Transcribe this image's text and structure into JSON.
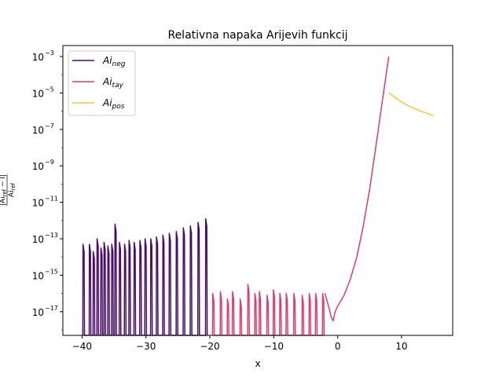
{
  "chart_data": {
    "type": "line",
    "title": "Relativna napaka Arijevih funkcij",
    "xlabel": "x",
    "ylabel": "|Ai_ref − I| / Ai_ref",
    "xlim": [
      -43,
      18
    ],
    "yscale": "log",
    "ylim_log10": [
      -18.3,
      -2.4
    ],
    "x_ticks": [
      -40,
      -30,
      -20,
      -10,
      0,
      10
    ],
    "x_tick_labels": [
      "−40",
      "−30",
      "−20",
      "−10",
      "0",
      "10"
    ],
    "y_ticks_log10": [
      -17,
      -15,
      -13,
      -11,
      -9,
      -7,
      -5,
      -3
    ],
    "y_tick_labels": [
      "10",
      "10",
      "10",
      "10",
      "10",
      "10",
      "10",
      "10"
    ],
    "y_tick_exponents": [
      "−17",
      "−15",
      "−13",
      "−11",
      "−9",
      "−7",
      "−5",
      "−3"
    ],
    "grid": false,
    "legend_position": "upper-left",
    "series": [
      {
        "name_base": "Ai",
        "name_sub": "neg",
        "color": "#4a0c6b",
        "style": "spikes",
        "x_range": [
          -40,
          -20.5
        ],
        "peaks": [
          {
            "x": -39.8,
            "log10_y": -13.3
          },
          {
            "x": -38.8,
            "log10_y": -13.3
          },
          {
            "x": -38.2,
            "log10_y": -13.7
          },
          {
            "x": -37.6,
            "log10_y": -13.0
          },
          {
            "x": -37.0,
            "log10_y": -13.5
          },
          {
            "x": -36.5,
            "log10_y": -13.2
          },
          {
            "x": -35.9,
            "log10_y": -13.4
          },
          {
            "x": -35.3,
            "log10_y": -13.3
          },
          {
            "x": -34.8,
            "log10_y": -12.2
          },
          {
            "x": -34.1,
            "log10_y": -13.2
          },
          {
            "x": -33.3,
            "log10_y": -13.3
          },
          {
            "x": -32.6,
            "log10_y": -13.1
          },
          {
            "x": -31.8,
            "log10_y": -13.2
          },
          {
            "x": -30.9,
            "log10_y": -13.1
          },
          {
            "x": -30.1,
            "log10_y": -13.0
          },
          {
            "x": -29.2,
            "log10_y": -13.0
          },
          {
            "x": -28.3,
            "log10_y": -12.9
          },
          {
            "x": -27.3,
            "log10_y": -12.8
          },
          {
            "x": -26.3,
            "log10_y": -12.7
          },
          {
            "x": -25.2,
            "log10_y": -12.6
          },
          {
            "x": -24.1,
            "log10_y": -12.4
          },
          {
            "x": -23.0,
            "log10_y": -12.3
          },
          {
            "x": -21.8,
            "log10_y": -12.1
          },
          {
            "x": -20.6,
            "log10_y": -11.9
          }
        ]
      },
      {
        "name_base": "Ai",
        "name_sub": "tay",
        "color": "#e03b6a",
        "style": "spikes",
        "x_range": [
          -20.5,
          -2
        ],
        "peaks": [
          {
            "x": -19.5,
            "log10_y": -16.0
          },
          {
            "x": -18.3,
            "log10_y": -15.9
          },
          {
            "x": -17.2,
            "log10_y": -16.3
          },
          {
            "x": -16.4,
            "log10_y": -15.9
          },
          {
            "x": -15.2,
            "log10_y": -16.3
          },
          {
            "x": -14.0,
            "log10_y": -15.5
          },
          {
            "x": -12.9,
            "log10_y": -16.0
          },
          {
            "x": -12.2,
            "log10_y": -15.9
          },
          {
            "x": -11.0,
            "log10_y": -16.1
          },
          {
            "x": -10.0,
            "log10_y": -15.8
          },
          {
            "x": -9.0,
            "log10_y": -16.0
          },
          {
            "x": -8.0,
            "log10_y": -16.0
          },
          {
            "x": -6.8,
            "log10_y": -16.0
          },
          {
            "x": -5.5,
            "log10_y": -16.1
          },
          {
            "x": -4.4,
            "log10_y": -16.0
          },
          {
            "x": -3.4,
            "log10_y": -16.0
          },
          {
            "x": -2.3,
            "log10_y": -16.0
          }
        ]
      },
      {
        "name_base": "Ai",
        "name_sub": "tay",
        "color": "#e03b6a",
        "style": "line",
        "points": [
          {
            "x": -2.0,
            "log10_y": -16.0
          },
          {
            "x": -1.5,
            "log10_y": -16.6
          },
          {
            "x": -1.0,
            "log10_y": -17.3
          },
          {
            "x": -0.7,
            "log10_y": -17.5
          },
          {
            "x": -0.4,
            "log10_y": -17.0
          },
          {
            "x": 0.0,
            "log10_y": -16.7
          },
          {
            "x": 1.0,
            "log10_y": -16.1
          },
          {
            "x": 2.0,
            "log10_y": -15.2
          },
          {
            "x": 3.0,
            "log10_y": -14.0
          },
          {
            "x": 4.0,
            "log10_y": -12.3
          },
          {
            "x": 5.0,
            "log10_y": -10.3
          },
          {
            "x": 6.0,
            "log10_y": -7.9
          },
          {
            "x": 7.0,
            "log10_y": -5.4
          },
          {
            "x": 8.0,
            "log10_y": -3.0
          }
        ]
      },
      {
        "name_base": "Ai",
        "name_sub": "pos",
        "color": "#f5c73a",
        "style": "line",
        "points": [
          {
            "x": 8.0,
            "log10_y": -5.0
          },
          {
            "x": 9.0,
            "log10_y": -5.25
          },
          {
            "x": 10.0,
            "log10_y": -5.5
          },
          {
            "x": 11.0,
            "log10_y": -5.7
          },
          {
            "x": 12.0,
            "log10_y": -5.85
          },
          {
            "x": 13.0,
            "log10_y": -6.0
          },
          {
            "x": 14.0,
            "log10_y": -6.12
          },
          {
            "x": 15.0,
            "log10_y": -6.25
          }
        ]
      }
    ],
    "legend": [
      {
        "base": "Ai",
        "sub": "neg",
        "color": "#4a0c6b"
      },
      {
        "base": "Ai",
        "sub": "tay",
        "color": "#e03b6a"
      },
      {
        "base": "Ai",
        "sub": "pos",
        "color": "#f5c73a"
      }
    ]
  }
}
